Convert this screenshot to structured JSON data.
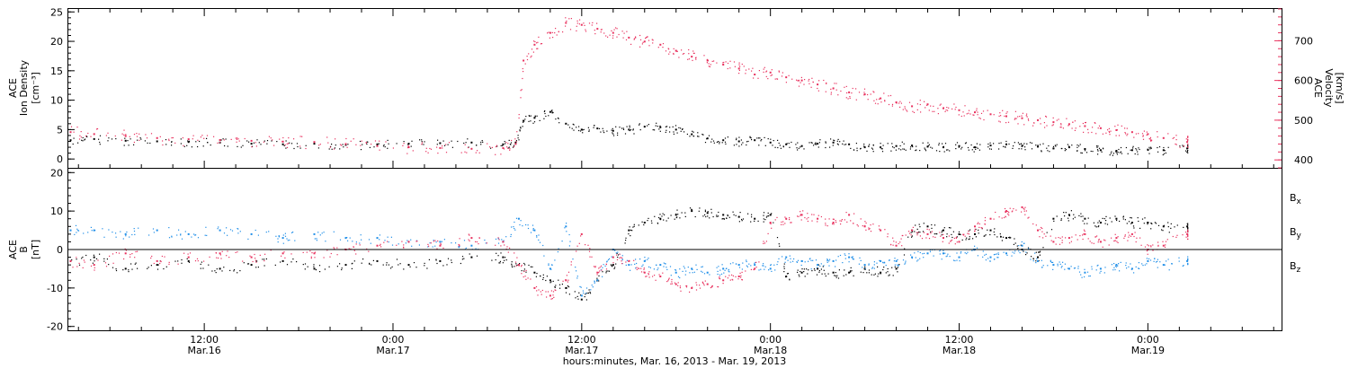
{
  "chart_data": [
    {
      "type": "scatter",
      "panel": "top",
      "xlabel": "hours:minutes, Mar. 16, 2013 - Mar. 19, 2013",
      "x_tick_labels": [
        {
          "t": 12,
          "time": "12:00",
          "date": "Mar.16"
        },
        {
          "t": 24,
          "time": "0:00",
          "date": "Mar.17"
        },
        {
          "t": 36,
          "time": "12:00",
          "date": "Mar.17"
        },
        {
          "t": 48,
          "time": "0:00",
          "date": "Mar.18"
        },
        {
          "t": 60,
          "time": "12:00",
          "date": "Mar.18"
        },
        {
          "t": 72,
          "time": "0:00",
          "date": "Mar.19"
        }
      ],
      "xlim_hours": [
        3.3,
        80.5
      ],
      "left_axis": {
        "label_lines": [
          "ACE",
          "Ion Density",
          "[cm⁻³]"
        ],
        "ylim": [
          -1.5,
          25.5
        ],
        "ticks": [
          "0",
          "5",
          "10",
          "15",
          "20",
          "25"
        ],
        "color": "#000000"
      },
      "right_axis": {
        "label_lines": [
          "ACE",
          "Velocity",
          "[km/s]"
        ],
        "ylim": [
          380,
          780
        ],
        "ticks": [
          "400",
          "500",
          "600",
          "700"
        ],
        "color": "#e8315e"
      },
      "series": [
        {
          "axis": "left",
          "color": "#000000",
          "x": [
            3.5,
            5,
            7,
            9,
            11,
            13,
            15,
            17,
            19,
            21,
            23,
            25,
            27,
            29,
            31,
            31.8,
            32.3,
            33,
            34,
            35,
            36,
            37,
            38,
            39,
            40,
            41,
            42,
            43,
            44,
            45,
            46,
            47,
            48,
            49,
            50,
            51,
            52,
            53,
            54,
            55,
            56,
            57,
            58,
            59,
            60,
            61,
            62,
            63,
            64,
            65,
            66,
            67,
            68,
            69,
            70,
            71,
            72,
            73,
            74.5
          ],
          "y": [
            3.2,
            3.4,
            3.1,
            3.0,
            2.9,
            2.8,
            2.6,
            2.5,
            2.6,
            2.4,
            2.5,
            2.6,
            2.7,
            2.8,
            2.5,
            2.8,
            6.5,
            7.0,
            8.0,
            6.0,
            5.0,
            5.2,
            4.8,
            5.0,
            5.5,
            5.4,
            5.0,
            4.2,
            3.5,
            3.2,
            3.0,
            3.2,
            2.8,
            2.5,
            2.2,
            2.6,
            2.8,
            2.5,
            2.0,
            2.0,
            2.2,
            2.3,
            2.1,
            2.0,
            2.2,
            2.0,
            2.3,
            2.5,
            2.2,
            2.1,
            1.8,
            2.0,
            1.7,
            1.5,
            1.4,
            1.5,
            1.6,
            1.5,
            1.8
          ]
        },
        {
          "axis": "right",
          "color": "#e8315e",
          "x": [
            3.5,
            5,
            7,
            9,
            11,
            13,
            15,
            17,
            19,
            21,
            23,
            25,
            27,
            29,
            31,
            31.8,
            32.3,
            33,
            34,
            35,
            36,
            37,
            38,
            39,
            40,
            41,
            42,
            43,
            44,
            45,
            46,
            47,
            48,
            49,
            50,
            51,
            52,
            53,
            54,
            55,
            56,
            57,
            58,
            59,
            60,
            61,
            62,
            63,
            64,
            65,
            66,
            67,
            68,
            69,
            70,
            71,
            72,
            73,
            74.5
          ],
          "y": [
            470,
            465,
            460,
            455,
            452,
            450,
            448,
            446,
            445,
            440,
            435,
            432,
            430,
            428,
            430,
            440,
            650,
            690,
            720,
            745,
            740,
            730,
            720,
            708,
            698,
            690,
            675,
            660,
            650,
            640,
            630,
            615,
            620,
            608,
            600,
            590,
            580,
            570,
            565,
            555,
            545,
            535,
            540,
            530,
            525,
            520,
            515,
            510,
            505,
            500,
            495,
            490,
            485,
            480,
            475,
            470,
            465,
            455,
            445
          ]
        }
      ]
    },
    {
      "type": "scatter",
      "panel": "bottom",
      "left_axis": {
        "label_lines": [
          "ACE",
          "B",
          "[nT]"
        ],
        "ylim": [
          -21,
          21
        ],
        "ticks": [
          "-20",
          "-10",
          "0",
          "10",
          "20"
        ],
        "color": "#000000"
      },
      "legend": {
        "placement": "right",
        "entries": [
          {
            "name": "Bx",
            "base": "B",
            "sub": "x",
            "color": "#000000"
          },
          {
            "name": "By",
            "base": "B",
            "sub": "y",
            "color": "#1e8ee8"
          },
          {
            "name": "Bz",
            "base": "B",
            "sub": "z",
            "color": "#e8315e"
          }
        ]
      },
      "series": [
        {
          "name": "Bx",
          "color": "#000000",
          "x": [
            3.5,
            5,
            7,
            9,
            11,
            13,
            15,
            17,
            19,
            21,
            23,
            25,
            27,
            29,
            31,
            32,
            33,
            34,
            35,
            36,
            37,
            38,
            39,
            40,
            41,
            42,
            43,
            44,
            45,
            46,
            47,
            48,
            49,
            50,
            51,
            52,
            53,
            54,
            55,
            56,
            57,
            58,
            59,
            60,
            61,
            62,
            63,
            64,
            65,
            66,
            67,
            68,
            69,
            70,
            71,
            72,
            73,
            74.5
          ],
          "y": [
            -3,
            -2,
            -5,
            -4,
            -3,
            -5,
            -4,
            -3,
            -5,
            -4,
            -3,
            -4,
            -3,
            -2,
            -2,
            -4,
            -6,
            -8,
            -10,
            -13,
            -8,
            -4,
            5,
            7,
            8,
            9,
            10,
            9.5,
            9,
            8.5,
            8,
            9,
            -7,
            -6,
            -5,
            -6,
            -6,
            -5,
            -6,
            -5,
            5,
            6,
            5,
            4,
            4,
            5,
            3,
            0,
            -2,
            8,
            9,
            8,
            7,
            8,
            7,
            7,
            6,
            6
          ]
        },
        {
          "name": "By",
          "color": "#1e8ee8",
          "x": [
            3.5,
            5,
            7,
            9,
            11,
            13,
            15,
            17,
            19,
            21,
            23,
            25,
            27,
            29,
            31,
            32,
            33,
            34,
            35,
            36,
            37,
            38,
            39,
            40,
            41,
            42,
            43,
            44,
            45,
            46,
            47,
            48,
            49,
            50,
            51,
            52,
            53,
            54,
            55,
            56,
            57,
            58,
            59,
            60,
            61,
            62,
            63,
            64,
            65,
            66,
            67,
            68,
            69,
            70,
            71,
            72,
            73,
            74.5
          ],
          "y": [
            5,
            5,
            4,
            5,
            4,
            5,
            4,
            3,
            4,
            3,
            3,
            2,
            2,
            1,
            2,
            8,
            5,
            -5,
            6,
            -12,
            -8,
            0,
            -4,
            -3,
            -4,
            -6,
            -5,
            -6,
            -5,
            -4,
            -4,
            -5,
            -2,
            -3,
            -4,
            -3,
            -2,
            -4,
            -3,
            -3,
            -2,
            -1,
            -1,
            -2,
            0,
            -2,
            -1,
            1,
            -3,
            -4,
            -5,
            -6,
            -5,
            -4,
            -5,
            -3,
            -4,
            -3
          ]
        },
        {
          "name": "Bz",
          "color": "#e8315e",
          "x": [
            3.5,
            5,
            7,
            9,
            11,
            13,
            15,
            17,
            19,
            21,
            23,
            25,
            27,
            29,
            31,
            32,
            33,
            34,
            35,
            36,
            37,
            38,
            39,
            40,
            41,
            42,
            43,
            44,
            45,
            46,
            47,
            48,
            49,
            50,
            51,
            52,
            53,
            54,
            55,
            56,
            57,
            58,
            59,
            60,
            61,
            62,
            63,
            64,
            65,
            66,
            67,
            68,
            69,
            70,
            71,
            72,
            73,
            74.5
          ],
          "y": [
            -3,
            -4,
            -1,
            -3,
            -2,
            -1,
            -2,
            -1,
            -1,
            0,
            1,
            2,
            1,
            3,
            2,
            -4,
            -10,
            -12,
            -8,
            4,
            -6,
            -2,
            -3,
            -6,
            -7,
            -9,
            -10,
            -9,
            -8,
            -7,
            -5,
            7,
            8,
            9,
            8,
            7,
            9,
            6,
            5,
            1,
            5,
            4,
            3,
            2,
            6,
            8,
            10,
            11,
            5,
            2,
            3,
            4,
            2,
            3,
            4,
            0,
            1,
            4
          ]
        }
      ]
    }
  ]
}
